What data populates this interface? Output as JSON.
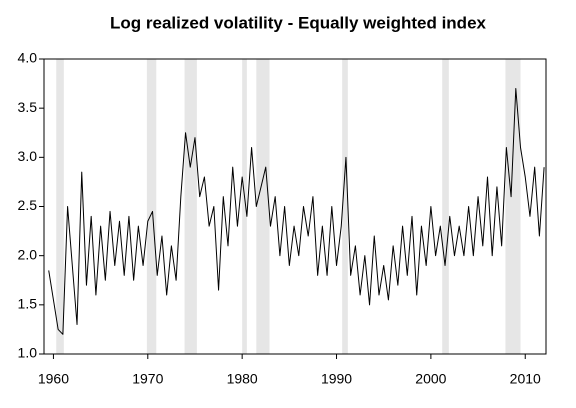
{
  "chart_data": {
    "type": "line",
    "title": "Log realized volatility - Equally weighted index",
    "x": [
      1959.5,
      1960,
      1960.5,
      1961,
      1961.5,
      1962,
      1962.5,
      1963,
      1963.5,
      1964,
      1964.5,
      1965,
      1965.5,
      1966,
      1966.5,
      1967,
      1967.5,
      1968,
      1968.5,
      1969,
      1969.5,
      1970,
      1970.5,
      1971,
      1971.5,
      1972,
      1972.5,
      1973,
      1973.5,
      1974,
      1974.5,
      1975,
      1975.5,
      1976,
      1976.5,
      1977,
      1977.5,
      1978,
      1978.5,
      1979,
      1979.5,
      1980,
      1980.5,
      1981,
      1981.5,
      1982,
      1982.5,
      1983,
      1983.5,
      1984,
      1984.5,
      1985,
      1985.5,
      1986,
      1986.5,
      1987,
      1987.5,
      1988,
      1988.5,
      1989,
      1989.5,
      1990,
      1990.5,
      1991,
      1991.5,
      1992,
      1992.5,
      1993,
      1993.5,
      1994,
      1994.5,
      1995,
      1995.5,
      1996,
      1996.5,
      1997,
      1997.5,
      1998,
      1998.5,
      1999,
      1999.5,
      2000,
      2000.5,
      2001,
      2001.5,
      2002,
      2002.5,
      2003,
      2003.5,
      2004,
      2004.5,
      2005,
      2005.5,
      2006,
      2006.5,
      2007,
      2007.5,
      2008,
      2008.5,
      2009,
      2009.5,
      2010,
      2010.5,
      2011,
      2011.5,
      2012
    ],
    "series": [
      {
        "color": "#000000",
        "values": [
          1.85,
          1.55,
          1.25,
          1.2,
          2.5,
          1.9,
          1.3,
          2.85,
          1.7,
          2.4,
          1.6,
          2.3,
          1.75,
          2.45,
          1.9,
          2.35,
          1.8,
          2.4,
          1.75,
          2.3,
          1.9,
          2.35,
          2.45,
          1.8,
          2.2,
          1.6,
          2.1,
          1.75,
          2.6,
          3.25,
          2.9,
          3.2,
          2.6,
          2.8,
          2.3,
          2.5,
          1.65,
          2.6,
          2.1,
          2.9,
          2.3,
          2.8,
          2.4,
          3.1,
          2.5,
          2.7,
          2.9,
          2.3,
          2.6,
          2.0,
          2.5,
          1.9,
          2.3,
          2.0,
          2.5,
          2.2,
          2.6,
          1.8,
          2.3,
          1.8,
          2.5,
          1.9,
          2.3,
          3.0,
          1.8,
          2.1,
          1.6,
          2.0,
          1.5,
          2.2,
          1.6,
          1.9,
          1.55,
          2.1,
          1.7,
          2.3,
          1.8,
          2.4,
          1.6,
          2.3,
          1.9,
          2.5,
          2.0,
          2.3,
          1.9,
          2.4,
          2.0,
          2.3,
          2.0,
          2.5,
          2.0,
          2.6,
          2.1,
          2.8,
          2.0,
          2.7,
          2.1,
          3.1,
          2.6,
          3.7,
          3.1,
          2.8,
          2.4,
          2.9,
          2.2,
          2.9
        ]
      }
    ],
    "shaded_periods": [
      [
        1960.3,
        1961.1
      ],
      [
        1969.9,
        1970.9
      ],
      [
        1973.9,
        1975.2
      ],
      [
        1980.0,
        1980.5
      ],
      [
        1981.5,
        1982.9
      ],
      [
        1990.6,
        1991.2
      ],
      [
        2001.2,
        2001.9
      ],
      [
        2007.9,
        2009.5
      ]
    ],
    "shade_color": "#e6e6e6",
    "xlim": [
      1959,
      2012.2
    ],
    "xticks": [
      1960,
      1970,
      1980,
      1990,
      2000,
      2010
    ],
    "ylim": [
      1,
      4
    ],
    "yticks": [
      {
        "value": 1,
        "label": "1.0"
      },
      {
        "value": 1.5,
        "label": "1.5"
      },
      {
        "value": 2,
        "label": "2.0"
      },
      {
        "value": 2.5,
        "label": "2.5"
      },
      {
        "value": 3,
        "label": "3.0"
      },
      {
        "value": 3.5,
        "label": "3.5"
      },
      {
        "value": 4,
        "label": "4.0"
      }
    ]
  }
}
